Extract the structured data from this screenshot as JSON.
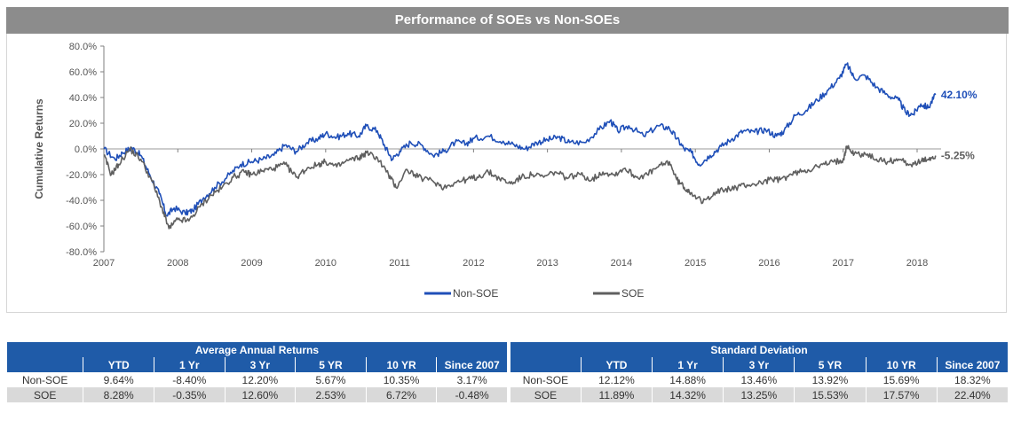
{
  "chart_data": {
    "type": "line",
    "title": "Performance of SOEs vs Non-SOEs",
    "ylabel": "Cumulative Returns",
    "xlabel": "",
    "xlim": [
      2007,
      2018.3
    ],
    "ylim": [
      -80,
      80
    ],
    "x_ticks": [
      "2007",
      "2008",
      "2009",
      "2010",
      "2011",
      "2012",
      "2013",
      "2014",
      "2015",
      "2016",
      "2017",
      "2018"
    ],
    "y_ticks": [
      "80.0%",
      "60.0%",
      "40.0%",
      "20.0%",
      "0.0%",
      "-20.0%",
      "-40.0%",
      "-60.0%",
      "-80.0%"
    ],
    "legend_position": "bottom",
    "end_labels": {
      "Non-SOE": "42.10%",
      "SOE": "-5.25%"
    },
    "series": [
      {
        "name": "Non-SOE",
        "color": "#1f4fb8",
        "points": [
          [
            2007.0,
            0
          ],
          [
            2007.15,
            -8
          ],
          [
            2007.25,
            -3
          ],
          [
            2007.38,
            1
          ],
          [
            2007.5,
            -5
          ],
          [
            2007.62,
            -20
          ],
          [
            2007.75,
            -35
          ],
          [
            2007.85,
            -52
          ],
          [
            2007.95,
            -46
          ],
          [
            2008.1,
            -50
          ],
          [
            2008.2,
            -48
          ],
          [
            2008.35,
            -38
          ],
          [
            2008.5,
            -30
          ],
          [
            2008.7,
            -20
          ],
          [
            2008.85,
            -12
          ],
          [
            2009.0,
            -10
          ],
          [
            2009.15,
            -8
          ],
          [
            2009.3,
            -5
          ],
          [
            2009.45,
            3
          ],
          [
            2009.6,
            -2
          ],
          [
            2009.75,
            5
          ],
          [
            2009.9,
            8
          ],
          [
            2010.0,
            12
          ],
          [
            2010.15,
            9
          ],
          [
            2010.3,
            12
          ],
          [
            2010.45,
            10
          ],
          [
            2010.55,
            18
          ],
          [
            2010.7,
            14
          ],
          [
            2010.8,
            2
          ],
          [
            2010.9,
            -8
          ],
          [
            2011.0,
            -2
          ],
          [
            2011.15,
            5
          ],
          [
            2011.3,
            3
          ],
          [
            2011.45,
            -5
          ],
          [
            2011.6,
            -2
          ],
          [
            2011.75,
            5
          ],
          [
            2011.9,
            4
          ],
          [
            2012.0,
            8
          ],
          [
            2012.2,
            10
          ],
          [
            2012.4,
            6
          ],
          [
            2012.55,
            3
          ],
          [
            2012.7,
            0
          ],
          [
            2012.85,
            5
          ],
          [
            2013.0,
            7
          ],
          [
            2013.15,
            9
          ],
          [
            2013.3,
            5
          ],
          [
            2013.5,
            5
          ],
          [
            2013.7,
            15
          ],
          [
            2013.85,
            22
          ],
          [
            2013.95,
            14
          ],
          [
            2014.1,
            18
          ],
          [
            2014.3,
            10
          ],
          [
            2014.5,
            18
          ],
          [
            2014.65,
            16
          ],
          [
            2014.75,
            8
          ],
          [
            2014.85,
            0
          ],
          [
            2014.95,
            -3
          ],
          [
            2015.05,
            -12
          ],
          [
            2015.2,
            -5
          ],
          [
            2015.35,
            2
          ],
          [
            2015.5,
            8
          ],
          [
            2015.65,
            14
          ],
          [
            2015.8,
            13
          ],
          [
            2015.95,
            15
          ],
          [
            2016.1,
            10
          ],
          [
            2016.2,
            14
          ],
          [
            2016.35,
            26
          ],
          [
            2016.5,
            30
          ],
          [
            2016.65,
            38
          ],
          [
            2016.8,
            46
          ],
          [
            2016.95,
            55
          ],
          [
            2017.05,
            66
          ],
          [
            2017.15,
            55
          ],
          [
            2017.3,
            57
          ],
          [
            2017.45,
            48
          ],
          [
            2017.6,
            42
          ],
          [
            2017.75,
            38
          ],
          [
            2017.85,
            28
          ],
          [
            2017.95,
            27
          ],
          [
            2018.05,
            35
          ],
          [
            2018.15,
            32
          ],
          [
            2018.25,
            42.1
          ]
        ]
      },
      {
        "name": "SOE",
        "color": "#5f5f5f",
        "points": [
          [
            2007.0,
            -5
          ],
          [
            2007.1,
            -20
          ],
          [
            2007.2,
            -12
          ],
          [
            2007.35,
            0
          ],
          [
            2007.5,
            -8
          ],
          [
            2007.65,
            -25
          ],
          [
            2007.78,
            -45
          ],
          [
            2007.88,
            -62
          ],
          [
            2008.0,
            -55
          ],
          [
            2008.15,
            -56
          ],
          [
            2008.3,
            -45
          ],
          [
            2008.45,
            -36
          ],
          [
            2008.6,
            -30
          ],
          [
            2008.75,
            -22
          ],
          [
            2008.9,
            -18
          ],
          [
            2009.0,
            -20
          ],
          [
            2009.15,
            -17
          ],
          [
            2009.3,
            -15
          ],
          [
            2009.45,
            -12
          ],
          [
            2009.6,
            -22
          ],
          [
            2009.75,
            -15
          ],
          [
            2009.9,
            -12
          ],
          [
            2010.0,
            -10
          ],
          [
            2010.15,
            -14
          ],
          [
            2010.3,
            -9
          ],
          [
            2010.45,
            -7
          ],
          [
            2010.55,
            -3
          ],
          [
            2010.7,
            -7
          ],
          [
            2010.85,
            -20
          ],
          [
            2010.95,
            -30
          ],
          [
            2011.1,
            -16
          ],
          [
            2011.25,
            -22
          ],
          [
            2011.45,
            -25
          ],
          [
            2011.6,
            -30
          ],
          [
            2011.75,
            -26
          ],
          [
            2011.9,
            -24
          ],
          [
            2012.05,
            -22
          ],
          [
            2012.2,
            -18
          ],
          [
            2012.35,
            -23
          ],
          [
            2012.5,
            -27
          ],
          [
            2012.65,
            -22
          ],
          [
            2012.8,
            -20
          ],
          [
            2012.95,
            -22
          ],
          [
            2013.1,
            -18
          ],
          [
            2013.25,
            -22
          ],
          [
            2013.45,
            -20
          ],
          [
            2013.6,
            -24
          ],
          [
            2013.75,
            -18
          ],
          [
            2013.9,
            -20
          ],
          [
            2014.05,
            -15
          ],
          [
            2014.2,
            -22
          ],
          [
            2014.35,
            -20
          ],
          [
            2014.5,
            -14
          ],
          [
            2014.65,
            -10
          ],
          [
            2014.75,
            -24
          ],
          [
            2014.85,
            -30
          ],
          [
            2014.95,
            -34
          ],
          [
            2015.1,
            -42
          ],
          [
            2015.25,
            -34
          ],
          [
            2015.4,
            -32
          ],
          [
            2015.55,
            -30
          ],
          [
            2015.7,
            -28
          ],
          [
            2015.85,
            -27
          ],
          [
            2016.0,
            -24
          ],
          [
            2016.15,
            -24
          ],
          [
            2016.3,
            -20
          ],
          [
            2016.45,
            -17
          ],
          [
            2016.6,
            -15
          ],
          [
            2016.75,
            -12
          ],
          [
            2016.9,
            -10
          ],
          [
            2017.0,
            -8
          ],
          [
            2017.05,
            2
          ],
          [
            2017.15,
            -4
          ],
          [
            2017.3,
            -4
          ],
          [
            2017.45,
            -8
          ],
          [
            2017.6,
            -10
          ],
          [
            2017.75,
            -8
          ],
          [
            2017.9,
            -12
          ],
          [
            2018.05,
            -10
          ],
          [
            2018.15,
            -8
          ],
          [
            2018.25,
            -5.25
          ]
        ]
      }
    ]
  },
  "table": {
    "groups": [
      "Average Annual Returns",
      "Standard Deviation"
    ],
    "columns": [
      "YTD",
      "1 Yr",
      "3 Yr",
      "5 YR",
      "10 YR",
      "Since 2007"
    ],
    "rows": [
      {
        "label": "Non-SOE",
        "returns": [
          "9.64%",
          "-8.40%",
          "12.20%",
          "5.67%",
          "10.35%",
          "3.17%"
        ],
        "std": [
          "12.12%",
          "14.88%",
          "13.46%",
          "13.92%",
          "15.69%",
          "18.32%"
        ]
      },
      {
        "label": "SOE",
        "returns": [
          "8.28%",
          "-0.35%",
          "12.60%",
          "2.53%",
          "6.72%",
          "-0.48%"
        ],
        "std": [
          "11.89%",
          "14.32%",
          "13.25%",
          "15.53%",
          "17.57%",
          "22.40%"
        ]
      }
    ]
  }
}
